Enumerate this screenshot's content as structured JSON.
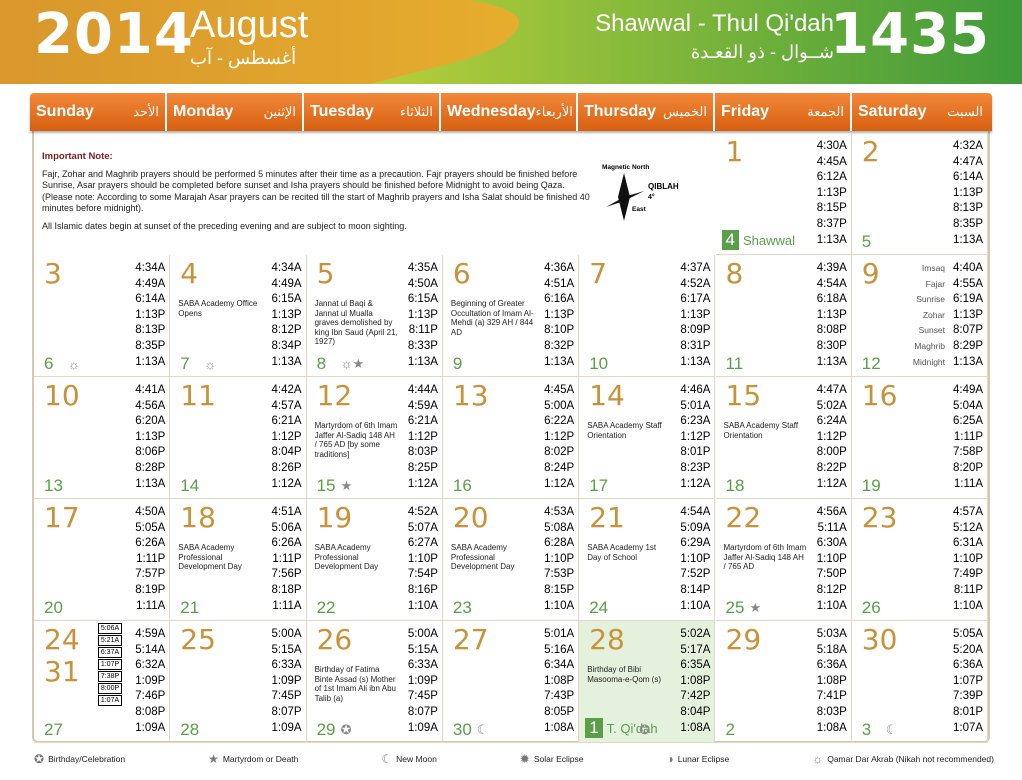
{
  "header": {
    "year": "2014",
    "month": "August",
    "month_ar": "أغسطس - آب",
    "hijri_months": "Shawwal - Thul Qi'dah",
    "hijri_months_ar": "شــوال - ذو القعـدة",
    "hijri_year": "1435"
  },
  "days": [
    {
      "en": "Sunday",
      "ar": "الأحد"
    },
    {
      "en": "Monday",
      "ar": "الإثنين"
    },
    {
      "en": "Tuesday",
      "ar": "الثلاثاء"
    },
    {
      "en": "Wednesday",
      "ar": "الأربعاء"
    },
    {
      "en": "Thursday",
      "ar": "الخميس"
    },
    {
      "en": "Friday",
      "ar": "الجمعة"
    },
    {
      "en": "Saturday",
      "ar": "السبت"
    }
  ],
  "note": {
    "title": "Important Note:",
    "p1": "Fajr, Zohar and Maghrib prayers should be performed 5 minutes after their time as a precaution. Fajr prayers should be finished before Sunrise, Asar prayers should be completed before sunset and Isha prayers should be finished before Midnight to avoid being Qaza. (Please note: According to some Marajah Asar prayers can be recited till the start of Maghrib prayers and Isha Salat should be finished 40 minutes before midnight).",
    "p2": "All Islamic dates begin at sunset of the preceding evening and are subject to moon sighting.",
    "compass_north": "Magnetic North",
    "compass_qiblah": "QIBLAH",
    "compass_deg": "4°",
    "compass_east": "East"
  },
  "time_labels": [
    "Imsaq",
    "Fajar",
    "Sunrise",
    "Zohar",
    "Sunset",
    "Maghrib",
    "Midnight"
  ],
  "cells": [
    {
      "g": "1",
      "h": "4",
      "hlabel": "Shawwal",
      "times": [
        "4:30A",
        "4:45A",
        "6:12A",
        "1:13P",
        "8:15P",
        "8:37P",
        "1:13A"
      ]
    },
    {
      "g": "2",
      "h": "5",
      "times": [
        "4:32A",
        "4:47A",
        "6:14A",
        "1:13P",
        "8:13P",
        "8:35P",
        "1:13A"
      ]
    },
    {
      "g": "3",
      "h": "6",
      "times": [
        "4:34A",
        "4:49A",
        "6:14A",
        "1:13P",
        "8:13P",
        "8:35P",
        "1:13A"
      ]
    },
    {
      "g": "4",
      "h": "7",
      "ev": "SABA Academy Office Opens",
      "times": [
        "4:34A",
        "4:49A",
        "6:15A",
        "1:13P",
        "8:12P",
        "8:34P",
        "1:13A"
      ]
    },
    {
      "g": "5",
      "h": "8",
      "ev": "Jannat ul Baqi & Jannat ul Mualla graves demolished by king Ibn Saud (April 21, 1927)",
      "times": [
        "4:35A",
        "4:50A",
        "6:15A",
        "1:13P",
        "8:11P",
        "8:33P",
        "1:13A"
      ]
    },
    {
      "g": "6",
      "h": "9",
      "ev": "Beginning of Greater Occultation of Imam Al-Mehdi (a) 329 AH / 844 AD",
      "times": [
        "4:36A",
        "4:51A",
        "6:16A",
        "1:13P",
        "8:10P",
        "8:32P",
        "1:13A"
      ]
    },
    {
      "g": "7",
      "h": "10",
      "times": [
        "4:37A",
        "4:52A",
        "6:17A",
        "1:13P",
        "8:09P",
        "8:31P",
        "1:13A"
      ]
    },
    {
      "g": "8",
      "h": "11",
      "times": [
        "4:39A",
        "4:54A",
        "6:18A",
        "1:13P",
        "8:08P",
        "8:30P",
        "1:13A"
      ]
    },
    {
      "g": "9",
      "h": "12",
      "times": [
        "4:40A",
        "4:55A",
        "6:19A",
        "1:13P",
        "8:07P",
        "8:29P",
        "1:13A"
      ]
    },
    {
      "g": "10",
      "h": "13",
      "times": [
        "4:41A",
        "4:56A",
        "6:20A",
        "1:13P",
        "8:06P",
        "8:28P",
        "1:13A"
      ]
    },
    {
      "g": "11",
      "h": "14",
      "times": [
        "4:42A",
        "4:57A",
        "6:21A",
        "1:12P",
        "8:04P",
        "8:26P",
        "1:12A"
      ]
    },
    {
      "g": "12",
      "h": "15",
      "ev": "Martyrdom of 6th Imam Jaffer Al-Sadiq 148 AH / 765 AD [by some traditions]",
      "times": [
        "4:44A",
        "4:59A",
        "6:21A",
        "1:12P",
        "8:03P",
        "8:25P",
        "1:12A"
      ]
    },
    {
      "g": "13",
      "h": "16",
      "times": [
        "4:45A",
        "5:00A",
        "6:22A",
        "1:12P",
        "8:02P",
        "8:24P",
        "1:12A"
      ]
    },
    {
      "g": "14",
      "h": "17",
      "ev": "SABA Academy Staff Orientation",
      "times": [
        "4:46A",
        "5:01A",
        "6:23A",
        "1:12P",
        "8:01P",
        "8:23P",
        "1:12A"
      ]
    },
    {
      "g": "15",
      "h": "18",
      "ev": "SABA Academy Staff Orientation",
      "times": [
        "4:47A",
        "5:02A",
        "6:24A",
        "1:12P",
        "8:00P",
        "8:22P",
        "1:12A"
      ]
    },
    {
      "g": "16",
      "h": "19",
      "times": [
        "4:49A",
        "5:04A",
        "6:25A",
        "1:11P",
        "7:58P",
        "8:20P",
        "1:11A"
      ]
    },
    {
      "g": "17",
      "h": "20",
      "times": [
        "4:50A",
        "5:05A",
        "6:26A",
        "1:11P",
        "7:57P",
        "8:19P",
        "1:11A"
      ]
    },
    {
      "g": "18",
      "h": "21",
      "ev": "SABA Academy Professional Development Day",
      "times": [
        "4:51A",
        "5:06A",
        "6:26A",
        "1:11P",
        "7:56P",
        "8:18P",
        "1:11A"
      ]
    },
    {
      "g": "19",
      "h": "22",
      "ev": "SABA Academy Professional Development Day",
      "times": [
        "4:52A",
        "5:07A",
        "6:27A",
        "1:10P",
        "7:54P",
        "8:16P",
        "1:10A"
      ]
    },
    {
      "g": "20",
      "h": "23",
      "ev": "SABA Academy Professional Development Day",
      "times": [
        "4:53A",
        "5:08A",
        "6:28A",
        "1:10P",
        "7:53P",
        "8:15P",
        "1:10A"
      ]
    },
    {
      "g": "21",
      "h": "24",
      "ev": "SABA Academy 1st Day of School",
      "times": [
        "4:54A",
        "5:09A",
        "6:29A",
        "1:10P",
        "7:52P",
        "8:14P",
        "1:10A"
      ]
    },
    {
      "g": "22",
      "h": "25",
      "ev": "Martyrdom of 6th Imam Jaffer Al-Sadiq 148 AH / 765 AD",
      "times": [
        "4:56A",
        "5:11A",
        "6:30A",
        "1:10P",
        "7:50P",
        "8:12P",
        "1:10A"
      ]
    },
    {
      "g": "23",
      "h": "26",
      "times": [
        "4:57A",
        "5:12A",
        "6:31A",
        "1:10P",
        "7:49P",
        "8:11P",
        "1:10A"
      ]
    },
    {
      "g": "24",
      "g2": "31",
      "h": "27",
      "mini": [
        "5:06A",
        "5:21A",
        "6:37A",
        "1:07P",
        "7:38P",
        "8:00P",
        "1:07A"
      ],
      "times": [
        "4:59A",
        "5:14A",
        "6:32A",
        "1:09P",
        "7:46P",
        "8:08P",
        "1:09A"
      ]
    },
    {
      "g": "25",
      "h": "28",
      "times": [
        "5:00A",
        "5:15A",
        "6:33A",
        "1:09P",
        "7:45P",
        "8:07P",
        "1:09A"
      ]
    },
    {
      "g": "26",
      "h": "29",
      "ev": "Birthday of Fatima Binte Assad (s) Mother of 1st Imam Ali ibn Abu Talib (a)",
      "times": [
        "5:00A",
        "5:15A",
        "6:33A",
        "1:09P",
        "7:45P",
        "8:07P",
        "1:09A"
      ]
    },
    {
      "g": "27",
      "h": "30",
      "times": [
        "5:01A",
        "5:16A",
        "6:34A",
        "1:08P",
        "7:43P",
        "8:05P",
        "1:08A"
      ]
    },
    {
      "g": "28",
      "h": "1",
      "hlabel": "T. Qi'dah",
      "ev": "Birthday of Bibi Masooma-e-Qom (s)",
      "times": [
        "5:02A",
        "5:17A",
        "6:35A",
        "1:08P",
        "7:42P",
        "8:04P",
        "1:08A"
      ]
    },
    {
      "g": "29",
      "h": "2",
      "times": [
        "5:03A",
        "5:18A",
        "6:36A",
        "1:08P",
        "7:41P",
        "8:03P",
        "1:08A"
      ]
    },
    {
      "g": "30",
      "h": "3",
      "times": [
        "5:05A",
        "5:20A",
        "6:36A",
        "1:07P",
        "7:39P",
        "8:01P",
        "1:07A"
      ]
    }
  ],
  "legend": [
    {
      "icon": "birthday-icon",
      "label": "Birthday/Celebration"
    },
    {
      "icon": "star-icon",
      "label": "Martyrdom or Death"
    },
    {
      "icon": "new-moon-icon",
      "label": "New Moon"
    },
    {
      "icon": "solar-eclipse-icon",
      "label": "Solar Eclipse"
    },
    {
      "icon": "lunar-eclipse-icon",
      "label": "Lunar Eclipse"
    },
    {
      "icon": "qamar-dar-akrab-icon",
      "label": "Qamar Dar Akrab (Nikah not recommended)"
    }
  ],
  "colors": {
    "orange": "#e8741e",
    "gold": "#c8923a",
    "green": "#5a9e4a",
    "highlight": "#e4f2dd"
  }
}
